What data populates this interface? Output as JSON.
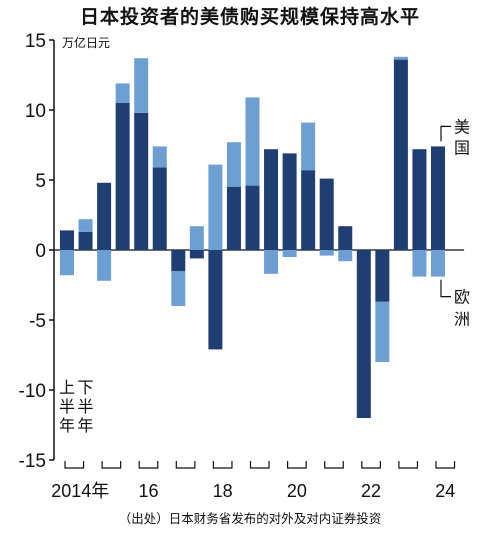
{
  "colors": {
    "us": "#1f3f72",
    "europe": "#6e9fd3",
    "axis": "#111111",
    "background": "#ffffff"
  },
  "chart_data": {
    "type": "bar",
    "title": "日本投资者的美债购买规模保持高水平",
    "unit": "万亿日元",
    "source": "（出处）日本财务省发布的对外及对内证券投资",
    "stacked": true,
    "ylim": [
      -15,
      15
    ],
    "yticks": [
      15,
      10,
      5,
      0,
      -5,
      -10,
      -15
    ],
    "grid": false,
    "categories": [
      "2014上",
      "2014下",
      "2015上",
      "2015下",
      "2016上",
      "2016下",
      "2017上",
      "2017下",
      "2018上",
      "2018下",
      "2019上",
      "2019下",
      "2020上",
      "2020下",
      "2021上",
      "2021下",
      "2022上",
      "2022下",
      "2023上",
      "2023下",
      "2024上",
      "2024下"
    ],
    "series": [
      {
        "name": "美国",
        "values": [
          1.4,
          1.3,
          4.8,
          10.5,
          9.8,
          5.9,
          -1.5,
          -0.6,
          -7.1,
          4.5,
          4.6,
          7.2,
          6.9,
          5.7,
          5.1,
          1.7,
          -12.0,
          -3.7,
          13.6,
          7.2,
          7.4,
          null
        ]
      },
      {
        "name": "欧洲",
        "values": [
          -1.8,
          0.9,
          -2.2,
          1.4,
          3.9,
          1.5,
          -2.5,
          1.7,
          6.1,
          3.2,
          6.3,
          -1.7,
          -0.5,
          3.4,
          -0.4,
          -0.8,
          0.0,
          -4.3,
          0.2,
          -1.9,
          -1.9,
          null
        ]
      }
    ],
    "x_tick_labels": [
      "2014年",
      "16",
      "18",
      "20",
      "22",
      "24"
    ],
    "half_labels": [
      "上半年",
      "下半年"
    ]
  }
}
